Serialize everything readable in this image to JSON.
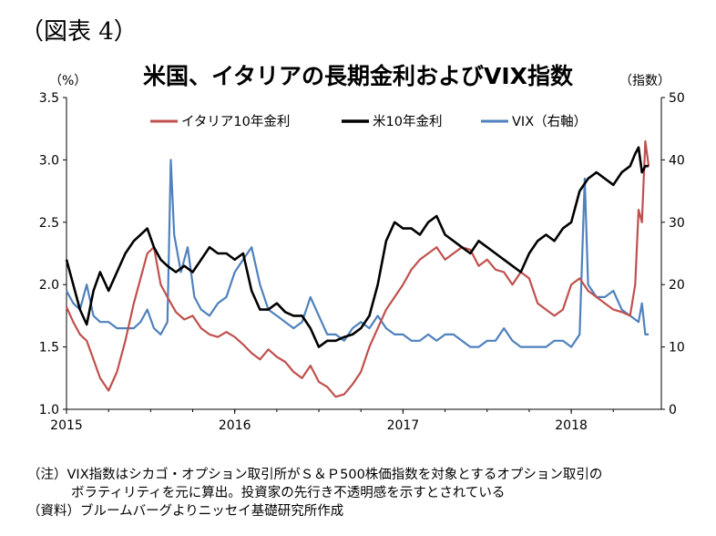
{
  "figure_label": "（図表 4）",
  "title": "米国、イタリアの長期金利およびVIX指数",
  "unit_left": "（%）",
  "unit_right": "（指数）",
  "notes": [
    "（注）VIX指数はシカゴ・オプション取引所がＳ＆Ｐ500株価指数を対象とするオプション取引の",
    "ボラティリティを元に算出。投資家の先行き不透明感を示すとされている",
    "（資料）ブルームバーグよりニッセイ基礎研究所作成"
  ],
  "chart_data": {
    "type": "line",
    "x_ticks": [
      "2015",
      "2016",
      "2017",
      "2018"
    ],
    "x_range": [
      "2015-01",
      "2018-06"
    ],
    "y_left": {
      "ticks": [
        "1.0",
        "1.5",
        "2.0",
        "2.5",
        "3.0",
        "3.5"
      ],
      "range": [
        1.0,
        3.5
      ]
    },
    "y_right": {
      "ticks": [
        "0",
        "10",
        "20",
        "30",
        "40",
        "50"
      ],
      "range": [
        0,
        50
      ]
    },
    "legend_position": "top",
    "grid": false,
    "series": [
      {
        "name": "イタリア10年金利",
        "axis": "left",
        "color": "#c0504d",
        "x": [
          2015.0,
          2015.04,
          2015.08,
          2015.12,
          2015.16,
          2015.2,
          2015.25,
          2015.3,
          2015.35,
          2015.4,
          2015.44,
          2015.48,
          2015.52,
          2015.56,
          2015.6,
          2015.65,
          2015.7,
          2015.75,
          2015.8,
          2015.85,
          2015.9,
          2015.95,
          2016.0,
          2016.05,
          2016.1,
          2016.15,
          2016.2,
          2016.25,
          2016.3,
          2016.35,
          2016.4,
          2016.45,
          2016.5,
          2016.55,
          2016.6,
          2016.65,
          2016.7,
          2016.75,
          2016.8,
          2016.85,
          2016.9,
          2016.95,
          2017.0,
          2017.05,
          2017.1,
          2017.15,
          2017.2,
          2017.25,
          2017.3,
          2017.35,
          2017.4,
          2017.45,
          2017.5,
          2017.55,
          2017.6,
          2017.65,
          2017.7,
          2017.75,
          2017.8,
          2017.85,
          2017.9,
          2017.95,
          2018.0,
          2018.05,
          2018.1,
          2018.15,
          2018.2,
          2018.25,
          2018.3,
          2018.35,
          2018.38,
          2018.4,
          2018.42,
          2018.44,
          2018.46
        ],
        "values": [
          1.82,
          1.7,
          1.6,
          1.55,
          1.4,
          1.25,
          1.15,
          1.3,
          1.55,
          1.85,
          2.05,
          2.25,
          2.3,
          2.0,
          1.9,
          1.78,
          1.72,
          1.75,
          1.65,
          1.6,
          1.58,
          1.62,
          1.58,
          1.52,
          1.45,
          1.4,
          1.48,
          1.42,
          1.38,
          1.3,
          1.25,
          1.35,
          1.22,
          1.18,
          1.1,
          1.12,
          1.2,
          1.3,
          1.5,
          1.65,
          1.8,
          1.9,
          2.0,
          2.12,
          2.2,
          2.25,
          2.3,
          2.2,
          2.25,
          2.3,
          2.28,
          2.15,
          2.2,
          2.12,
          2.1,
          2.0,
          2.1,
          2.05,
          1.85,
          1.8,
          1.75,
          1.8,
          2.0,
          2.05,
          1.95,
          1.9,
          1.85,
          1.8,
          1.78,
          1.75,
          2.0,
          2.6,
          2.5,
          3.15,
          2.95
        ]
      },
      {
        "name": "米10年金利",
        "axis": "left",
        "color": "#000000",
        "x": [
          2015.0,
          2015.04,
          2015.08,
          2015.12,
          2015.16,
          2015.2,
          2015.25,
          2015.3,
          2015.35,
          2015.4,
          2015.44,
          2015.48,
          2015.52,
          2015.56,
          2015.6,
          2015.65,
          2015.7,
          2015.75,
          2015.8,
          2015.85,
          2015.9,
          2015.95,
          2016.0,
          2016.05,
          2016.1,
          2016.15,
          2016.2,
          2016.25,
          2016.3,
          2016.35,
          2016.4,
          2016.45,
          2016.5,
          2016.55,
          2016.6,
          2016.65,
          2016.7,
          2016.75,
          2016.8,
          2016.85,
          2016.9,
          2016.95,
          2017.0,
          2017.05,
          2017.1,
          2017.15,
          2017.2,
          2017.25,
          2017.3,
          2017.35,
          2017.4,
          2017.45,
          2017.5,
          2017.55,
          2017.6,
          2017.65,
          2017.7,
          2017.75,
          2017.8,
          2017.85,
          2017.9,
          2017.95,
          2018.0,
          2018.05,
          2018.1,
          2018.15,
          2018.2,
          2018.25,
          2018.3,
          2018.35,
          2018.38,
          2018.4,
          2018.42,
          2018.44,
          2018.46
        ],
        "values": [
          2.2,
          2.0,
          1.8,
          1.68,
          1.95,
          2.1,
          1.95,
          2.1,
          2.25,
          2.35,
          2.4,
          2.45,
          2.3,
          2.2,
          2.15,
          2.1,
          2.15,
          2.1,
          2.2,
          2.3,
          2.25,
          2.25,
          2.2,
          2.25,
          1.95,
          1.8,
          1.8,
          1.85,
          1.78,
          1.75,
          1.75,
          1.65,
          1.5,
          1.55,
          1.55,
          1.58,
          1.6,
          1.65,
          1.75,
          2.0,
          2.35,
          2.5,
          2.45,
          2.45,
          2.4,
          2.5,
          2.55,
          2.4,
          2.35,
          2.3,
          2.25,
          2.35,
          2.3,
          2.25,
          2.2,
          2.15,
          2.1,
          2.25,
          2.35,
          2.4,
          2.35,
          2.45,
          2.5,
          2.75,
          2.85,
          2.9,
          2.85,
          2.8,
          2.9,
          2.95,
          3.05,
          3.1,
          2.9,
          2.95,
          2.95
        ]
      },
      {
        "name": "VIX（右軸）",
        "axis": "right",
        "color": "#4f81bd",
        "x": [
          2015.0,
          2015.04,
          2015.08,
          2015.12,
          2015.16,
          2015.2,
          2015.25,
          2015.3,
          2015.35,
          2015.4,
          2015.44,
          2015.48,
          2015.52,
          2015.56,
          2015.6,
          2015.62,
          2015.64,
          2015.68,
          2015.72,
          2015.76,
          2015.8,
          2015.85,
          2015.9,
          2015.95,
          2016.0,
          2016.05,
          2016.1,
          2016.15,
          2016.2,
          2016.25,
          2016.3,
          2016.35,
          2016.4,
          2016.45,
          2016.5,
          2016.55,
          2016.6,
          2016.65,
          2016.7,
          2016.75,
          2016.8,
          2016.85,
          2016.9,
          2016.95,
          2017.0,
          2017.05,
          2017.1,
          2017.15,
          2017.2,
          2017.25,
          2017.3,
          2017.35,
          2017.4,
          2017.45,
          2017.5,
          2017.55,
          2017.6,
          2017.65,
          2017.7,
          2017.75,
          2017.8,
          2017.85,
          2017.9,
          2017.95,
          2018.0,
          2018.05,
          2018.08,
          2018.1,
          2018.15,
          2018.2,
          2018.25,
          2018.3,
          2018.35,
          2018.4,
          2018.42,
          2018.44,
          2018.46
        ],
        "values": [
          19,
          17,
          16,
          20,
          15,
          14,
          14,
          13,
          13,
          13,
          14,
          16,
          13,
          12,
          14,
          40,
          28,
          22,
          26,
          18,
          16,
          15,
          17,
          18,
          22,
          24,
          26,
          20,
          16,
          15,
          14,
          13,
          14,
          18,
          15,
          12,
          12,
          11,
          13,
          14,
          13,
          15,
          13,
          12,
          12,
          11,
          11,
          12,
          11,
          12,
          12,
          11,
          10,
          10,
          11,
          11,
          13,
          11,
          10,
          10,
          10,
          10,
          11,
          11,
          10,
          12,
          37,
          20,
          18,
          18,
          19,
          16,
          15,
          14,
          17,
          12,
          12
        ]
      }
    ]
  }
}
